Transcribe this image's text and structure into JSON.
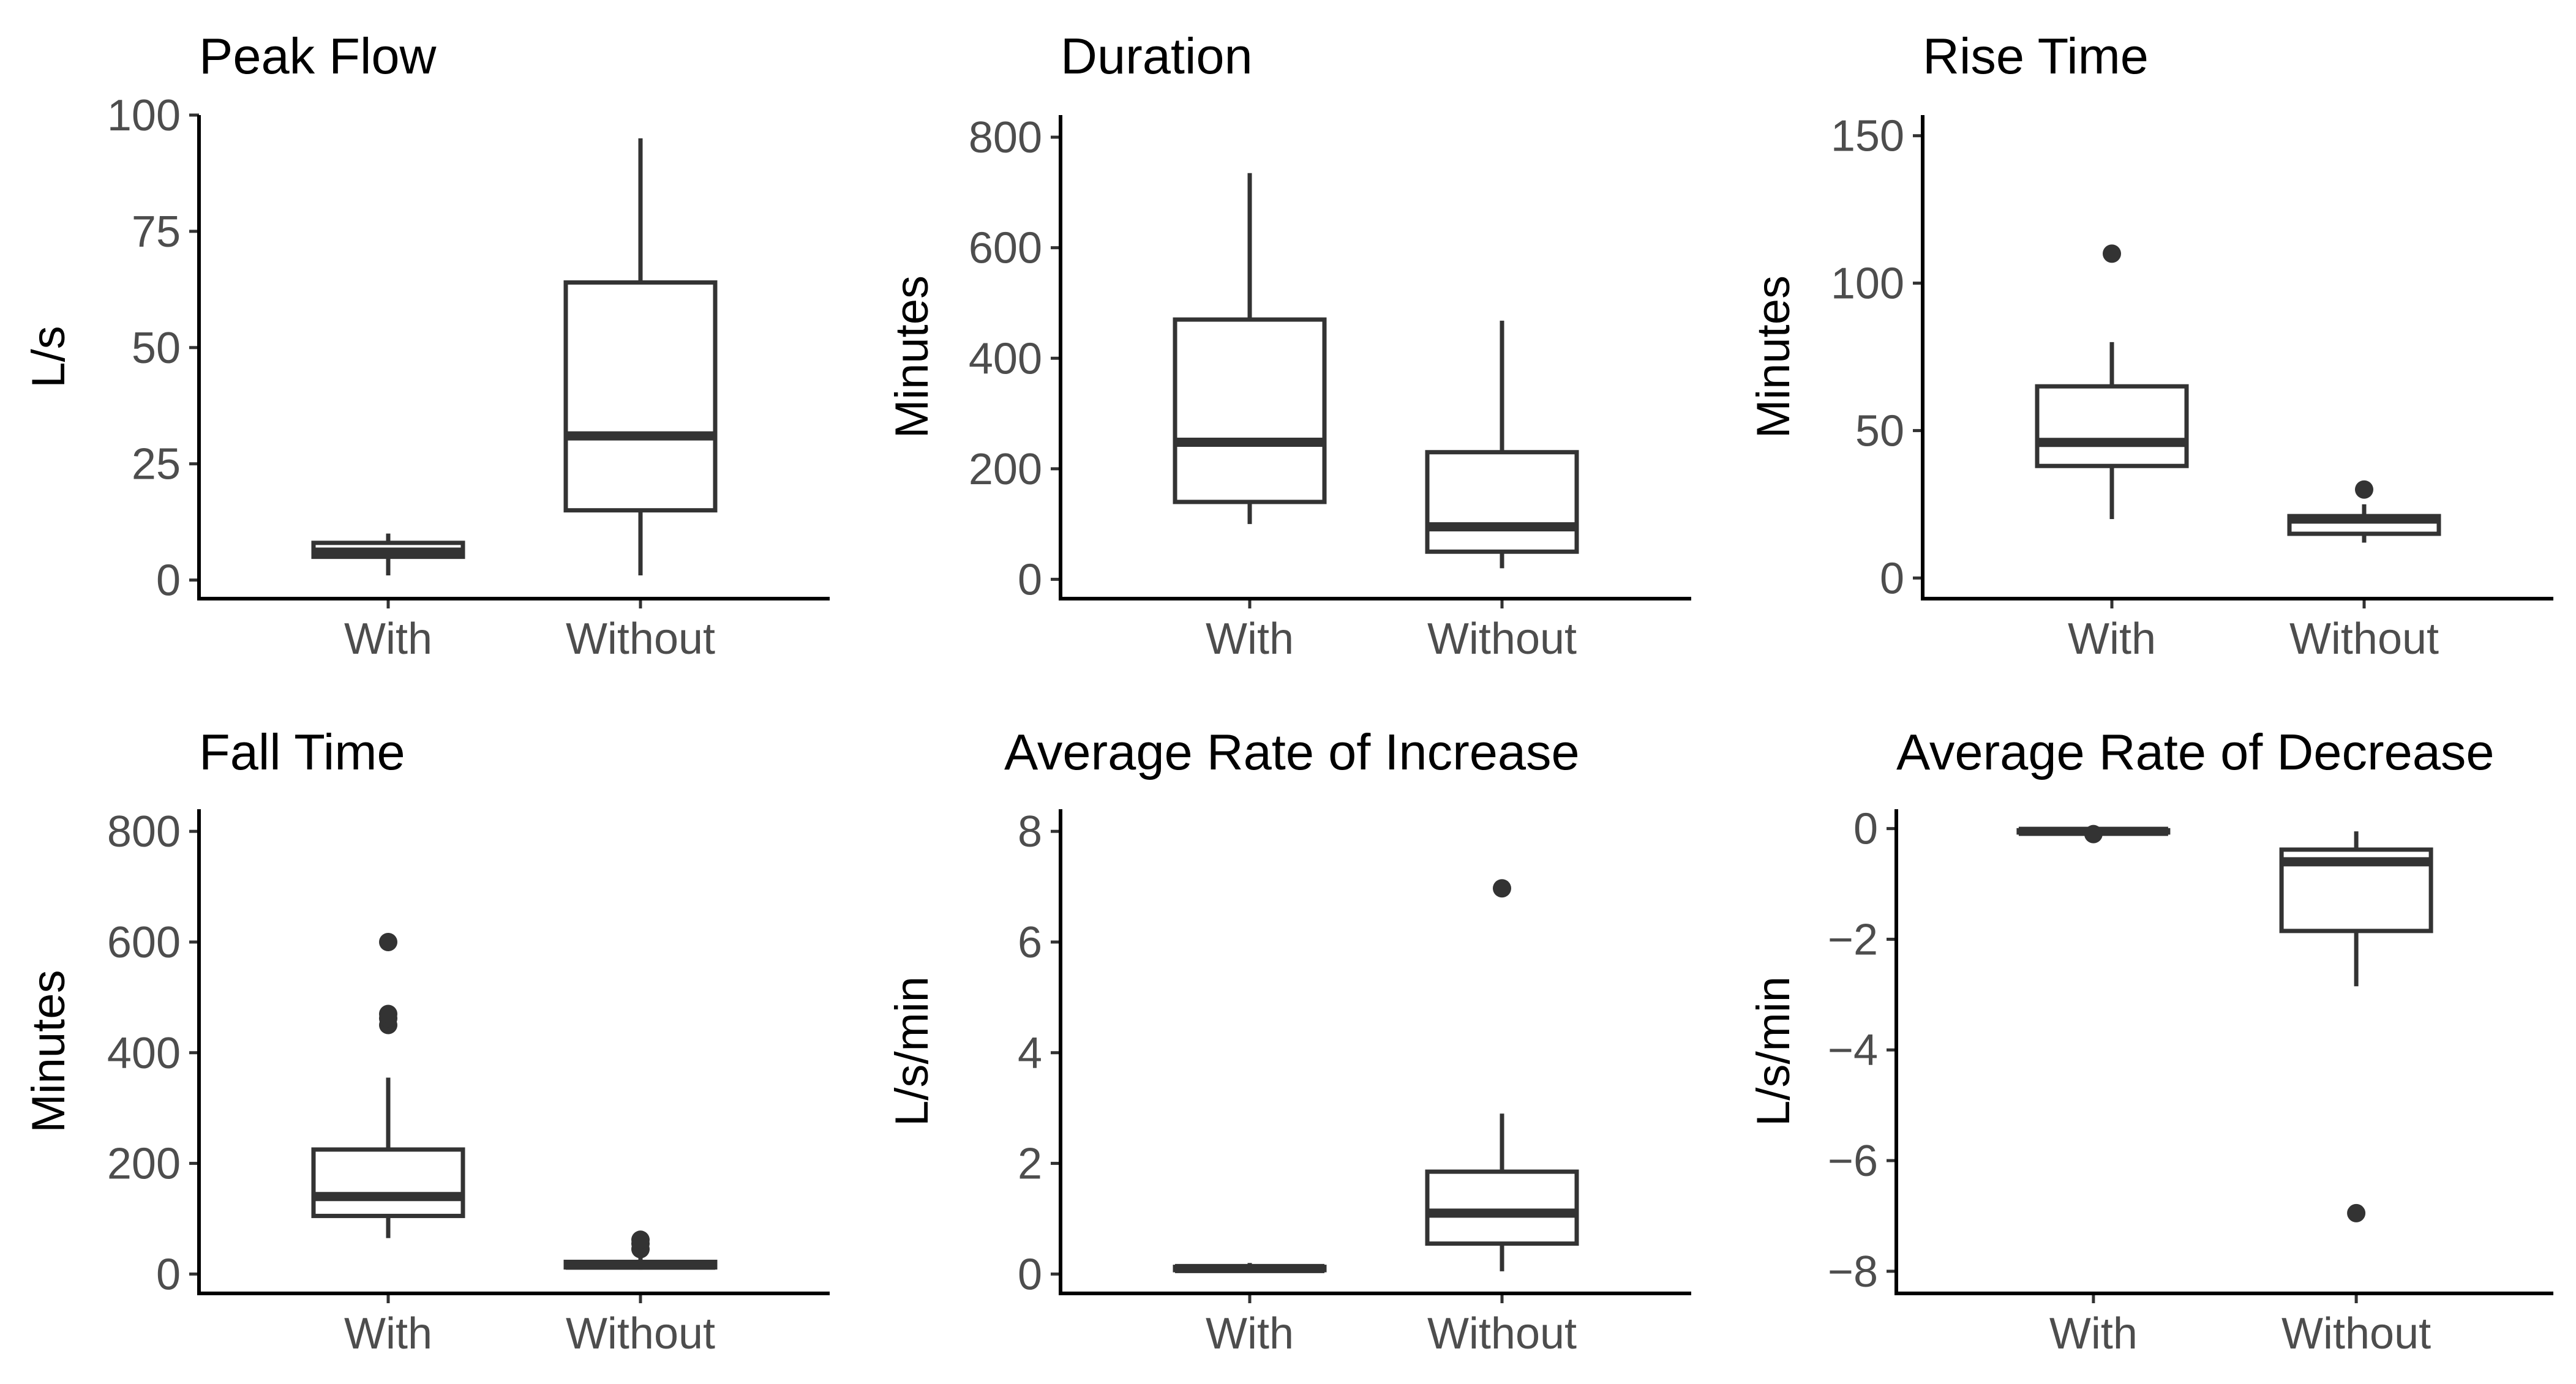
{
  "figure_title": "",
  "chart_data": [
    {
      "type": "boxplot",
      "title": "Peak Flow",
      "ylabel": "L/s",
      "xlabel": "",
      "categories": [
        "With",
        "Without"
      ],
      "ylim": [
        -4,
        100
      ],
      "yticks": [
        0,
        25,
        50,
        75,
        100
      ],
      "ytick_labels": [
        "0",
        "25",
        "50",
        "75",
        "100"
      ],
      "boxes": [
        {
          "min": 1,
          "q1": 5,
          "median": 6,
          "q3": 8,
          "max": 10,
          "outliers": []
        },
        {
          "min": 1,
          "q1": 15,
          "median": 31,
          "q3": 64,
          "max": 95,
          "outliers": []
        }
      ]
    },
    {
      "type": "boxplot",
      "title": "Duration",
      "ylabel": "Minutes",
      "xlabel": "",
      "categories": [
        "With",
        "Without"
      ],
      "ylim": [
        -35,
        840
      ],
      "yticks": [
        0,
        200,
        400,
        600,
        800
      ],
      "ytick_labels": [
        "0",
        "200",
        "400",
        "600",
        "800"
      ],
      "boxes": [
        {
          "min": 100,
          "q1": 140,
          "median": 248,
          "q3": 470,
          "max": 735,
          "outliers": []
        },
        {
          "min": 20,
          "q1": 50,
          "median": 95,
          "q3": 230,
          "max": 468,
          "outliers": []
        }
      ]
    },
    {
      "type": "boxplot",
      "title": "Rise Time",
      "ylabel": "Minutes",
      "xlabel": "",
      "categories": [
        "With",
        "Without"
      ],
      "ylim": [
        -7,
        157
      ],
      "yticks": [
        0,
        50,
        100,
        150
      ],
      "ytick_labels": [
        "0",
        "50",
        "100",
        "150"
      ],
      "boxes": [
        {
          "min": 20,
          "q1": 38,
          "median": 46,
          "q3": 65,
          "max": 80,
          "outliers": [
            110
          ]
        },
        {
          "min": 12,
          "q1": 15,
          "median": 20,
          "q3": 21,
          "max": 25,
          "outliers": [
            30
          ]
        }
      ]
    },
    {
      "type": "boxplot",
      "title": "Fall Time",
      "ylabel": "Minutes",
      "xlabel": "",
      "categories": [
        "With",
        "Without"
      ],
      "ylim": [
        -35,
        840
      ],
      "yticks": [
        0,
        200,
        400,
        600,
        800
      ],
      "ytick_labels": [
        "0",
        "200",
        "400",
        "600",
        "800"
      ],
      "boxes": [
        {
          "min": 65,
          "q1": 105,
          "median": 140,
          "q3": 225,
          "max": 355,
          "outliers": [
            450,
            462,
            470,
            600
          ]
        },
        {
          "min": 8,
          "q1": 12,
          "median": 16,
          "q3": 22,
          "max": 35,
          "outliers": [
            45,
            55,
            62
          ]
        }
      ]
    },
    {
      "type": "boxplot",
      "title": "Average Rate of Increase",
      "ylabel": "L/s/min",
      "xlabel": "",
      "categories": [
        "With",
        "Without"
      ],
      "ylim": [
        -0.35,
        8.4
      ],
      "yticks": [
        0,
        2,
        4,
        6,
        8
      ],
      "ytick_labels": [
        "0",
        "2",
        "4",
        "6",
        "8"
      ],
      "boxes": [
        {
          "min": 0.02,
          "q1": 0.07,
          "median": 0.1,
          "q3": 0.13,
          "max": 0.2,
          "outliers": []
        },
        {
          "min": 0.05,
          "q1": 0.55,
          "median": 1.1,
          "q3": 1.85,
          "max": 2.9,
          "outliers": [
            6.97
          ]
        }
      ]
    },
    {
      "type": "boxplot",
      "title": "Average Rate of Decrease",
      "ylabel": "L/s/min",
      "xlabel": "",
      "categories": [
        "With",
        "Without"
      ],
      "ylim": [
        -8.4,
        0.35
      ],
      "yticks": [
        0,
        -2,
        -4,
        -6,
        -8
      ],
      "ytick_labels": [
        "0",
        "−2",
        "−4",
        "−6",
        "−8"
      ],
      "boxes": [
        {
          "min": -0.08,
          "q1": -0.07,
          "median": -0.05,
          "q3": -0.03,
          "max": -0.01,
          "outliers": [
            -0.1
          ]
        },
        {
          "min": -2.85,
          "q1": -1.85,
          "median": -0.6,
          "q3": -0.38,
          "max": -0.05,
          "outliers": [
            -6.95
          ]
        }
      ]
    }
  ]
}
